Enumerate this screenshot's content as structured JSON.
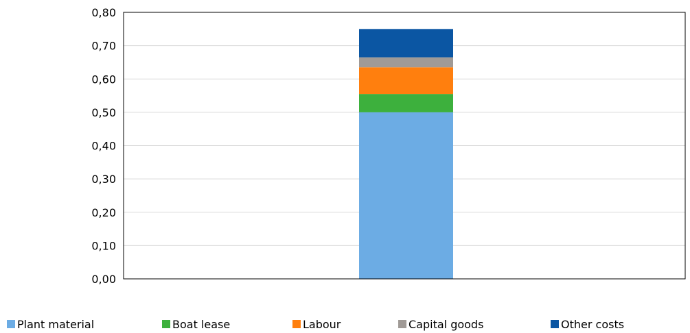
{
  "chart_data": {
    "type": "bar",
    "stacked": true,
    "categories": [
      ""
    ],
    "ylim": [
      0,
      0.8
    ],
    "yticks": [
      "0,00",
      "0,10",
      "0,20",
      "0,30",
      "0,40",
      "0,50",
      "0,60",
      "0,70",
      "0,80"
    ],
    "grid": true,
    "legend_position": "bottom",
    "series": [
      {
        "name": "Plant material",
        "values": [
          0.5
        ],
        "color": "#6CACE4"
      },
      {
        "name": "Boat lease",
        "values": [
          0.055
        ],
        "color": "#3DB03D"
      },
      {
        "name": "Labour",
        "values": [
          0.08
        ],
        "color": "#FF7F0E"
      },
      {
        "name": "Capital goods",
        "values": [
          0.03
        ],
        "color": "#A09A96"
      },
      {
        "name": "Other costs",
        "values": [
          0.085
        ],
        "color": "#0B56A3"
      }
    ]
  }
}
